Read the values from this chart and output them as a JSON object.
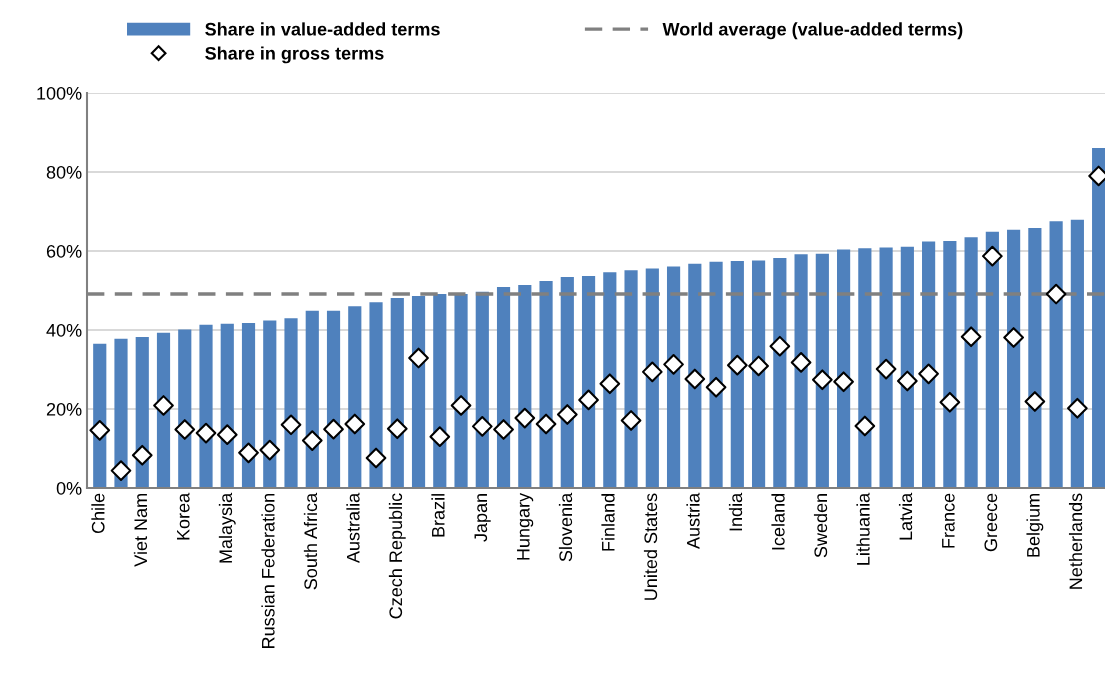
{
  "chart_data": {
    "type": "bar",
    "categories": [
      "Chile",
      null,
      "Viet Nam",
      null,
      "Korea",
      null,
      "Malaysia",
      null,
      "Russian Federation",
      null,
      "South Africa",
      null,
      "Australia",
      null,
      "Czech Republic",
      null,
      "Brazil",
      null,
      "Japan",
      null,
      "Hungary",
      null,
      "Slovenia",
      null,
      "Finland",
      null,
      "United States",
      null,
      "Austria",
      null,
      "India",
      null,
      "Iceland",
      null,
      "Sweden",
      null,
      "Lithuania",
      null,
      "Latvia",
      null,
      "France",
      null,
      "Greece",
      null,
      "Belgium",
      null,
      "Netherlands",
      null
    ],
    "series": [
      {
        "name": "Share in value-added terms",
        "color": "#4f81bd",
        "values": [
          36.5,
          37.8,
          38.2,
          39.3,
          40.1,
          41.3,
          41.6,
          41.8,
          42.4,
          43.0,
          44.9,
          44.9,
          46.0,
          47.0,
          48.1,
          48.6,
          49.1,
          49.1,
          49.7,
          50.9,
          51.4,
          52.4,
          53.4,
          53.7,
          54.6,
          55.1,
          55.6,
          56.1,
          56.8,
          57.3,
          57.5,
          57.6,
          58.2,
          59.2,
          59.3,
          60.4,
          60.7,
          60.9,
          61.1,
          62.4,
          62.5,
          63.5,
          64.9,
          65.4,
          65.8,
          67.5,
          67.9,
          86.1
        ]
      },
      {
        "name": "Share in gross terms",
        "type": "scatter",
        "color": "#ffffff",
        "marker": "diamond",
        "values": [
          14.6,
          4.4,
          8.3,
          20.9,
          14.8,
          13.9,
          13.5,
          8.9,
          9.6,
          16.0,
          12.0,
          14.9,
          16.2,
          7.6,
          15.0,
          32.9,
          13.0,
          20.9,
          15.6,
          14.8,
          17.7,
          16.2,
          18.6,
          22.3,
          26.4,
          17.1,
          29.4,
          31.3,
          27.6,
          25.5,
          31.1,
          30.9,
          35.9,
          31.8,
          27.4,
          26.9,
          15.7,
          30.1,
          27.1,
          28.9,
          21.7,
          38.3,
          58.7,
          38.1,
          21.9,
          49.1,
          20.2,
          79.0
        ]
      }
    ],
    "ref_lines": [
      {
        "axis": "y",
        "value": 49.1,
        "label": "World average (value-added terms)",
        "color": "#808080",
        "line_style": "dashed"
      }
    ],
    "ylim": [
      0,
      100
    ],
    "yticks": [
      {
        "value": 0,
        "label": "0%"
      },
      {
        "value": 20,
        "label": "20%"
      },
      {
        "value": 40,
        "label": "40%"
      },
      {
        "value": 60,
        "label": "60%"
      },
      {
        "value": 80,
        "label": "80%"
      },
      {
        "value": 100,
        "label": "100%"
      }
    ],
    "grid": "y",
    "legend": "top"
  }
}
